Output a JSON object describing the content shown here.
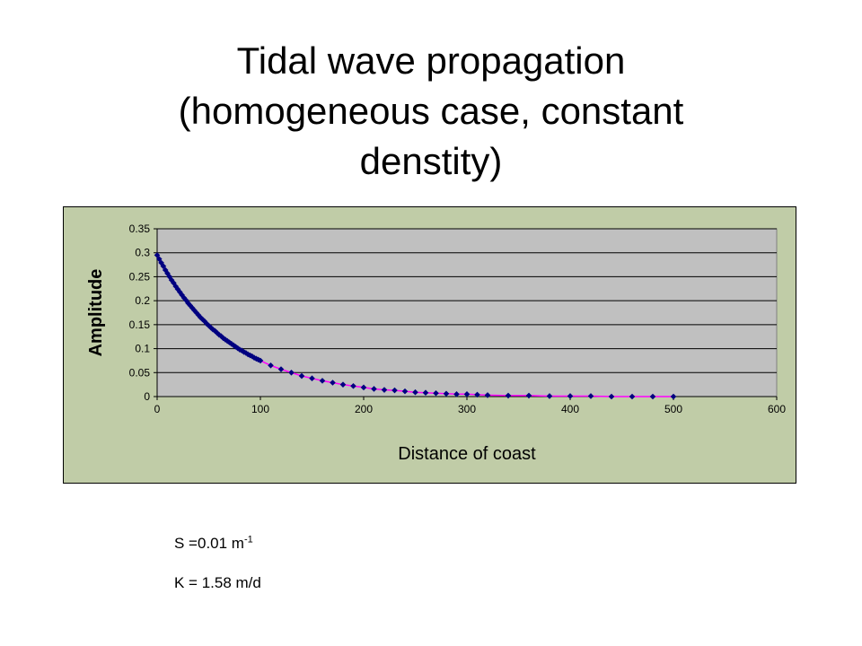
{
  "slide": {
    "title_lines": [
      "Tidal wave propagation",
      "(homogeneous case, constant",
      "denstity)"
    ]
  },
  "params": {
    "s_label": "S =0.01 m",
    "s_exponent": "-1",
    "k_label": "K = 1.58 m/d"
  },
  "colors": {
    "frame_bg": "#c0cca7",
    "plot_bg": "#c0c0c0",
    "marker": "#000080",
    "trend_line": "#ff00ff"
  },
  "chart_data": {
    "type": "scatter",
    "title": "",
    "xlabel": "Distance of coast",
    "ylabel": "Amplitude",
    "xlim": [
      0,
      600
    ],
    "ylim": [
      0,
      0.35
    ],
    "xticks": [
      "0",
      "100",
      "200",
      "300",
      "400",
      "500",
      "600"
    ],
    "yticks": [
      "0",
      "0.05",
      "0.1",
      "0.15",
      "0.2",
      "0.25",
      "0.3",
      "0.35"
    ],
    "grid": "horizontal",
    "series": [
      {
        "x": [
          0,
          2,
          4,
          6,
          8,
          10,
          12,
          14,
          16,
          18,
          20,
          22,
          24,
          26,
          28,
          30,
          32,
          34,
          36,
          38,
          40,
          42,
          44,
          46,
          48,
          50,
          52,
          54,
          56,
          58,
          60,
          62,
          64,
          66,
          68,
          70,
          72,
          74,
          76,
          78,
          80,
          82,
          84,
          86,
          88,
          90,
          92,
          94,
          96,
          98,
          100,
          110,
          120,
          130,
          140,
          150,
          160,
          170,
          180,
          190,
          200,
          210,
          220,
          230,
          240,
          250,
          260,
          270,
          280,
          290,
          300,
          310,
          320,
          340,
          360,
          380,
          400,
          420,
          440,
          460,
          480,
          500
        ],
        "y": [
          0.295,
          0.287,
          0.279,
          0.272,
          0.264,
          0.257,
          0.25,
          0.243,
          0.237,
          0.23,
          0.224,
          0.218,
          0.212,
          0.206,
          0.201,
          0.195,
          0.19,
          0.185,
          0.18,
          0.175,
          0.17,
          0.165,
          0.161,
          0.157,
          0.152,
          0.148,
          0.144,
          0.14,
          0.137,
          0.133,
          0.129,
          0.126,
          0.122,
          0.119,
          0.116,
          0.113,
          0.11,
          0.107,
          0.104,
          0.101,
          0.098,
          0.096,
          0.093,
          0.091,
          0.088,
          0.086,
          0.084,
          0.081,
          0.079,
          0.077,
          0.075,
          0.065,
          0.057,
          0.05,
          0.043,
          0.038,
          0.033,
          0.029,
          0.025,
          0.022,
          0.019,
          0.016,
          0.014,
          0.013,
          0.011,
          0.009,
          0.008,
          0.007,
          0.006,
          0.005,
          0.005,
          0.004,
          0.003,
          0.002,
          0.002,
          0.001,
          0.001,
          0.001,
          0,
          0,
          0,
          0
        ]
      }
    ]
  }
}
